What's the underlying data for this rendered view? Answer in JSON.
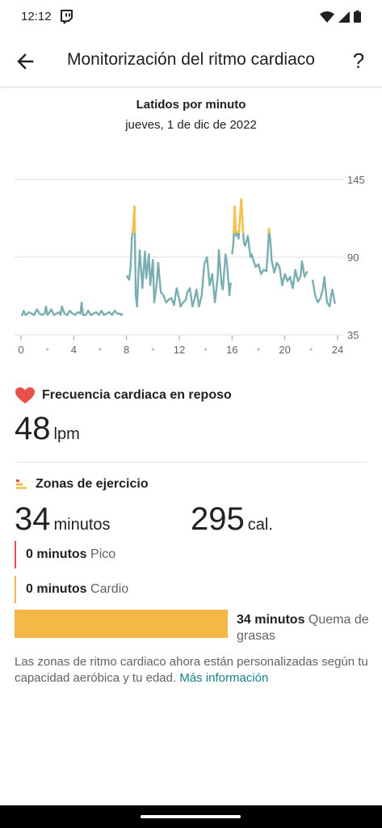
{
  "status": {
    "time": "12:12"
  },
  "header": {
    "title": "Monitorización del ritmo cardiaco",
    "help": "?"
  },
  "chart_data": {
    "type": "line",
    "title": "Latidos por minuto",
    "subtitle": "jueves, 1 de dic de 2022",
    "xlim": [
      0,
      24
    ],
    "ylim": [
      35,
      145
    ],
    "x_ticks": [
      "0",
      "4",
      "8",
      "12",
      "16",
      "20",
      "24"
    ],
    "y_ticks": [
      "145",
      "90",
      "35"
    ],
    "zone_threshold": 107,
    "colors": {
      "line": "#7aaeb0",
      "zone": "#f4c24d",
      "grid": "#dddddd"
    },
    "series": [
      {
        "x": [
          0,
          0.1,
          0.2,
          0.35,
          0.5,
          0.6,
          0.8,
          1.0,
          1.2,
          1.4,
          1.6,
          1.8,
          1.9,
          2.0,
          2.1,
          2.3,
          2.5,
          2.7,
          2.9,
          3.0,
          3.1,
          3.3,
          3.5,
          3.7,
          3.9,
          4.1,
          4.3,
          4.5,
          4.6,
          4.7,
          4.9,
          5.1,
          5.3,
          5.5,
          5.7,
          5.9,
          6.1,
          6.3,
          6.5,
          6.7,
          6.9,
          7.1,
          7.3,
          7.5,
          7.6,
          7.7
        ],
        "y": [
          49,
          49,
          52,
          49,
          50,
          51,
          50,
          49,
          53,
          50,
          49,
          50,
          55,
          49,
          50,
          53,
          49,
          50,
          51,
          49,
          55,
          50,
          49,
          52,
          50,
          49,
          51,
          50,
          58,
          49,
          49,
          52,
          49,
          50,
          51,
          49,
          52,
          49,
          50,
          51,
          49,
          52,
          50,
          50,
          49,
          50
        ]
      },
      {
        "x": [
          8.0,
          8.2,
          8.3,
          8.4,
          8.5,
          8.6,
          8.7,
          8.8,
          8.9,
          9.0,
          9.2,
          9.4,
          9.5,
          9.7,
          9.8,
          10.0,
          10.1,
          10.3,
          10.4,
          10.6,
          10.8,
          11.0,
          11.2,
          11.4,
          11.6,
          11.8,
          12.0,
          12.1,
          12.3,
          12.5,
          12.6,
          12.8,
          13.0,
          13.2,
          13.3,
          13.5,
          13.7,
          13.9,
          14.1,
          14.3,
          14.5,
          14.7,
          14.9,
          15.0,
          15.2,
          15.3,
          15.5,
          15.6,
          15.8,
          15.9
        ],
        "y": [
          77,
          74,
          82,
          103,
          110,
          126,
          63,
          55,
          78,
          95,
          68,
          94,
          75,
          92,
          70,
          88,
          58,
          72,
          86,
          65,
          63,
          58,
          60,
          61,
          56,
          68,
          60,
          55,
          58,
          60,
          65,
          68,
          55,
          62,
          67,
          55,
          63,
          85,
          90,
          70,
          78,
          58,
          75,
          95,
          71,
          67,
          92,
          87,
          63,
          72
        ]
      },
      {
        "x": [
          16.0,
          16.1,
          16.2,
          16.3,
          16.4,
          16.5,
          16.6,
          16.7,
          16.8,
          16.9,
          17.0,
          17.2,
          17.4,
          17.5,
          17.6,
          17.8,
          18.0,
          18.2,
          18.4,
          18.6,
          18.7,
          18.8,
          18.9,
          19.0,
          19.2,
          19.4,
          19.6,
          19.8,
          20.0,
          20.2,
          20.4,
          20.6,
          20.8,
          21.0,
          21.2,
          21.3,
          21.5,
          21.7
        ],
        "y": [
          92,
          100,
          126,
          105,
          108,
          103,
          118,
          131,
          113,
          100,
          98,
          105,
          90,
          92,
          88,
          83,
          85,
          78,
          81,
          80,
          92,
          110,
          102,
          88,
          79,
          86,
          83,
          70,
          78,
          73,
          76,
          68,
          81,
          73,
          77,
          87,
          76,
          80
        ]
      },
      {
        "x": [
          22.1,
          22.3,
          22.5,
          22.7,
          22.9,
          23.0,
          23.2,
          23.4,
          23.5,
          23.6,
          23.8
        ],
        "y": [
          74,
          63,
          58,
          61,
          68,
          76,
          58,
          55,
          62,
          67,
          57
        ]
      }
    ]
  },
  "resting": {
    "heading": "Frecuencia cardiaca en reposo",
    "value": "48",
    "unit": "lpm"
  },
  "zones": {
    "heading": "Zonas de ejercicio",
    "minutes_value": "34",
    "minutes_unit": "minutos",
    "cal_value": "295",
    "cal_unit": "cal.",
    "items": [
      {
        "amount": "0 minutos",
        "label": "Pico",
        "color": "#e8504b"
      },
      {
        "amount": "0 minutos",
        "label": "Cardio",
        "color": "#f4b847"
      },
      {
        "amount": "34 minutos",
        "label": "Quema de grasas",
        "color": "#f4b847"
      }
    ]
  },
  "note": {
    "text": "Las zonas de ritmo cardiaco ahora están personalizadas según tu capacidad aeróbica y tu edad. ",
    "link": "Más información"
  }
}
